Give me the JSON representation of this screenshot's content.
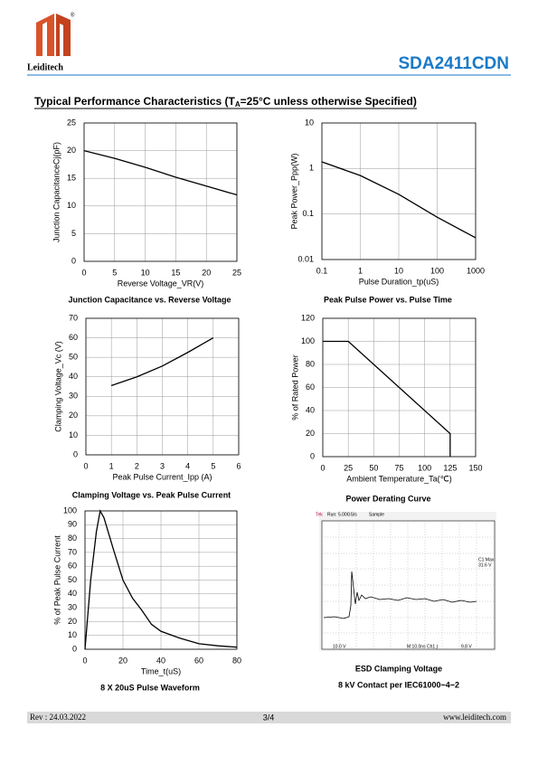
{
  "header": {
    "brand": "Leiditech",
    "registered_mark": "®",
    "part_number": "SDA2411CDN"
  },
  "section_title": {
    "before": "Typical Performance Characteristics (T",
    "sub": "A",
    "after": "=25°C unless otherwise Specified)"
  },
  "chart_data": [
    {
      "type": "line",
      "title": "Junction Capacitance vs. Reverse Voltage",
      "x_label": "Reverse Voltage_VR(V)",
      "y_label": "Junction CapacitanceCj(pF)",
      "x": [
        0,
        5,
        10,
        15,
        20,
        25
      ],
      "values": [
        20,
        18.6,
        17,
        15.2,
        13.6,
        12
      ],
      "color": "#000000",
      "xlim": [
        0,
        25
      ],
      "xticks": [
        0,
        5,
        10,
        15,
        20,
        25
      ],
      "ylim": [
        0,
        25
      ],
      "yticks": [
        0,
        5,
        10,
        15,
        20,
        25
      ],
      "grid": true
    },
    {
      "type": "line",
      "title": "Peak Pulse Power vs. Pulse Time",
      "x_label": "Pulse Duration_tp(uS)",
      "y_label": "Peak Power_Ppp(W)",
      "x": [
        0.1,
        1,
        10,
        100,
        1000
      ],
      "values": [
        1.4,
        0.7,
        0.27,
        0.085,
        0.03
      ],
      "color": "#000000",
      "xlim": [
        0.1,
        1000
      ],
      "xticks": [
        0.1,
        1,
        10,
        100,
        1000
      ],
      "ylim": [
        0.01,
        10
      ],
      "yticks": [
        0.01,
        0.1,
        1,
        10
      ],
      "xlog": true,
      "ylog": true,
      "grid": true
    },
    {
      "type": "line",
      "title": "Clamping Voltage vs. Peak Pulse Current",
      "x_label": "Peak Pulse Current_Ipp  (A)",
      "y_label": "Clamping Voltage_Vc (V)",
      "x": [
        1,
        2,
        3,
        4,
        5
      ],
      "values": [
        35.5,
        40,
        45.5,
        52.5,
        60
      ],
      "color": "#000000",
      "xlim": [
        0,
        6
      ],
      "xticks": [
        0,
        1,
        2,
        3,
        4,
        5,
        6
      ],
      "ylim": [
        0,
        70
      ],
      "yticks": [
        0,
        10,
        20,
        30,
        40,
        50,
        60,
        70
      ],
      "grid": true
    },
    {
      "type": "line",
      "title": "Power Derating Curve",
      "x_label": "Ambient  Temperature_Ta(℃)",
      "y_label": "% of Rated Power",
      "x": [
        0,
        25,
        125,
        125
      ],
      "values": [
        100,
        100,
        20,
        0
      ],
      "color": "#000000",
      "xlim": [
        0,
        150
      ],
      "xticks": [
        0,
        25,
        50,
        75,
        100,
        125,
        150
      ],
      "ylim": [
        0,
        120
      ],
      "yticks": [
        0,
        20,
        40,
        60,
        80,
        100,
        120
      ],
      "grid": true
    },
    {
      "type": "line",
      "title": "8 X 20uS Pulse Waveform",
      "x_label": "Time_t(uS)",
      "y_label": "% of Peak Pulse Current",
      "x": [
        0,
        3,
        6,
        8,
        10,
        15,
        20,
        25,
        30,
        35,
        40,
        50,
        60,
        70,
        80
      ],
      "values": [
        0,
        50,
        85,
        100,
        95,
        72,
        50,
        37,
        28,
        18,
        13,
        8,
        4,
        2.5,
        1.5
      ],
      "color": "#000000",
      "xlim": [
        0,
        80
      ],
      "xticks": [
        0,
        20,
        40,
        60,
        80
      ],
      "ylim": [
        0,
        100
      ],
      "yticks": [
        0,
        10,
        20,
        30,
        40,
        50,
        60,
        70,
        80,
        90,
        100
      ],
      "grid": true
    }
  ],
  "esd": {
    "caption": "ESD Clamping Voltage",
    "subcaption": "8 kV Contact per IEC61000−4−2",
    "scope": {
      "label": "Tek",
      "status": "Run: 5.00GS/s",
      "mode": "Sample",
      "measure_name": "C1 Max",
      "measure_value": "31.6 V",
      "ch1_scale": "10.0 V",
      "timebase": "M 10.0ns  Ch1 ∫",
      "trigger": "9.8 V"
    }
  },
  "footer": {
    "revision": "Rev : 24.03.2022",
    "page": "3/4",
    "website": "www.leiditech.com"
  }
}
